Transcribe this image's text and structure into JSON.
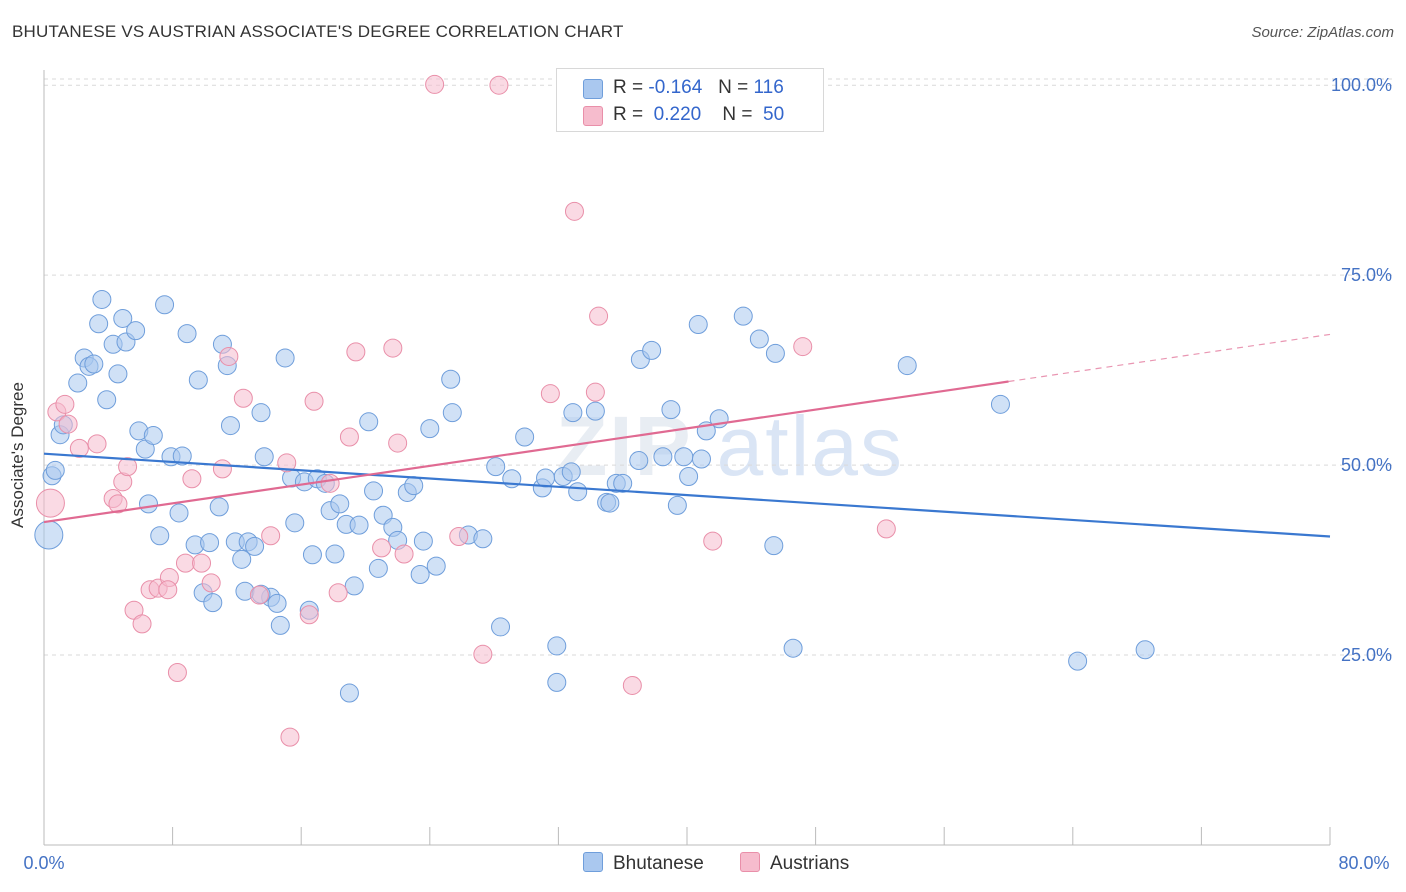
{
  "header": {
    "title": "BHUTANESE VS AUSTRIAN ASSOCIATE'S DEGREE CORRELATION CHART",
    "source": "Source: ZipAtlas.com"
  },
  "watermark": {
    "zip": "ZIP",
    "atlas": "atlas"
  },
  "legend": {
    "rows": [
      {
        "r_label": "R =",
        "r_value": "-0.164",
        "n_label": "N =",
        "n_value": "116"
      },
      {
        "r_label": "R =",
        "r_value": "0.220",
        "n_label": "N =",
        "n_value": "50"
      }
    ]
  },
  "bottom_legend": {
    "items": [
      "Bhutanese",
      "Austrians"
    ]
  },
  "colors": {
    "blue_fill": "#aac8ef",
    "blue_stroke": "#6f9edb",
    "blue_line": "#3a78d0",
    "pink_fill": "#f6bccd",
    "pink_stroke": "#e98fa9",
    "pink_line": "#e06a92",
    "grid": "#d9d9d9",
    "tick_text": "#4472c4"
  },
  "chart_data": {
    "type": "scatter",
    "title": "BHUTANESE VS AUSTRIAN ASSOCIATE'S DEGREE CORRELATION CHART",
    "xlabel": "",
    "ylabel": "Associate's Degree",
    "xlim": [
      0,
      80
    ],
    "ylim": [
      0,
      102
    ],
    "x_ticks": [
      0,
      8,
      16,
      24,
      32,
      40,
      48,
      56,
      64,
      72,
      80
    ],
    "x_tick_labels": {
      "0": "0.0%",
      "80": "80.0%"
    },
    "y_ticks": [
      25,
      50,
      75,
      100
    ],
    "y_tick_labels": [
      "25.0%",
      "50.0%",
      "75.0%",
      "100.0%"
    ],
    "grid": true,
    "legend_position": "top-center",
    "series": [
      {
        "name": "Bhutanese",
        "r": -0.164,
        "n": 116,
        "trend": {
          "x": [
            0,
            80
          ],
          "y": [
            51.5,
            40.6
          ]
        },
        "points": [
          [
            0.3,
            40.8
          ],
          [
            0.5,
            48.6
          ],
          [
            0.7,
            49.3
          ],
          [
            1.0,
            54.0
          ],
          [
            1.2,
            55.3
          ],
          [
            2.1,
            60.8
          ],
          [
            2.5,
            64.1
          ],
          [
            2.8,
            63.0
          ],
          [
            3.1,
            63.3
          ],
          [
            3.4,
            68.6
          ],
          [
            3.6,
            71.8
          ],
          [
            3.9,
            58.6
          ],
          [
            4.3,
            65.9
          ],
          [
            4.6,
            62.0
          ],
          [
            4.9,
            69.3
          ],
          [
            5.1,
            66.2
          ],
          [
            5.7,
            67.7
          ],
          [
            5.9,
            54.5
          ],
          [
            6.3,
            52.1
          ],
          [
            6.5,
            44.9
          ],
          [
            6.8,
            53.9
          ],
          [
            7.2,
            40.7
          ],
          [
            7.5,
            71.1
          ],
          [
            7.9,
            51.1
          ],
          [
            8.4,
            43.7
          ],
          [
            8.6,
            51.2
          ],
          [
            8.9,
            67.3
          ],
          [
            9.4,
            39.5
          ],
          [
            9.6,
            61.2
          ],
          [
            9.9,
            33.2
          ],
          [
            10.3,
            39.8
          ],
          [
            10.5,
            31.9
          ],
          [
            10.9,
            44.5
          ],
          [
            11.1,
            65.9
          ],
          [
            11.4,
            63.1
          ],
          [
            11.6,
            55.2
          ],
          [
            11.9,
            39.9
          ],
          [
            12.3,
            37.6
          ],
          [
            12.5,
            33.4
          ],
          [
            12.7,
            39.9
          ],
          [
            13.1,
            39.3
          ],
          [
            13.5,
            56.9
          ],
          [
            13.7,
            51.1
          ],
          [
            14.1,
            32.6
          ],
          [
            14.5,
            31.8
          ],
          [
            14.7,
            28.9
          ],
          [
            15.0,
            64.1
          ],
          [
            15.4,
            48.3
          ],
          [
            15.6,
            42.4
          ],
          [
            16.2,
            47.8
          ],
          [
            16.5,
            30.9
          ],
          [
            16.7,
            38.2
          ],
          [
            17.0,
            48.2
          ],
          [
            17.5,
            47.6
          ],
          [
            17.8,
            44.0
          ],
          [
            18.1,
            38.3
          ],
          [
            18.4,
            44.9
          ],
          [
            18.8,
            42.2
          ],
          [
            19.3,
            34.1
          ],
          [
            19.6,
            42.1
          ],
          [
            20.2,
            55.7
          ],
          [
            20.5,
            46.6
          ],
          [
            20.8,
            36.4
          ],
          [
            21.1,
            43.4
          ],
          [
            21.7,
            41.8
          ],
          [
            22.0,
            40.1
          ],
          [
            22.6,
            46.4
          ],
          [
            23.0,
            47.3
          ],
          [
            23.4,
            35.6
          ],
          [
            23.6,
            40.0
          ],
          [
            24.0,
            54.8
          ],
          [
            24.4,
            36.7
          ],
          [
            25.3,
            61.3
          ],
          [
            25.4,
            56.9
          ],
          [
            26.4,
            40.8
          ],
          [
            27.3,
            40.3
          ],
          [
            28.1,
            49.8
          ],
          [
            28.4,
            28.7
          ],
          [
            29.1,
            48.2
          ],
          [
            29.9,
            53.7
          ],
          [
            31.0,
            47.0
          ],
          [
            31.2,
            48.3
          ],
          [
            31.9,
            21.4
          ],
          [
            31.9,
            26.2
          ],
          [
            32.3,
            48.5
          ],
          [
            32.8,
            49.1
          ],
          [
            32.9,
            56.9
          ],
          [
            33.2,
            46.5
          ],
          [
            34.3,
            57.1
          ],
          [
            35.0,
            45.1
          ],
          [
            35.2,
            45.0
          ],
          [
            35.6,
            47.6
          ],
          [
            36.0,
            47.6
          ],
          [
            37.0,
            50.6
          ],
          [
            37.1,
            63.9
          ],
          [
            37.8,
            65.1
          ],
          [
            38.5,
            51.1
          ],
          [
            39.0,
            57.3
          ],
          [
            39.4,
            44.7
          ],
          [
            39.8,
            51.1
          ],
          [
            40.1,
            48.5
          ],
          [
            40.7,
            68.5
          ],
          [
            40.9,
            50.8
          ],
          [
            41.2,
            54.5
          ],
          [
            42.0,
            56.1
          ],
          [
            43.5,
            69.6
          ],
          [
            44.5,
            66.6
          ],
          [
            45.4,
            39.4
          ],
          [
            45.5,
            64.7
          ],
          [
            46.6,
            25.9
          ],
          [
            53.7,
            63.1
          ],
          [
            59.5,
            58.0
          ],
          [
            64.3,
            24.2
          ],
          [
            68.5,
            25.7
          ],
          [
            19.0,
            20.0
          ],
          [
            13.5,
            33.0
          ]
        ]
      },
      {
        "name": "Austrians",
        "r": 0.22,
        "n": 50,
        "trend": {
          "x": [
            0,
            60
          ],
          "y": [
            42.5,
            61.0
          ]
        },
        "trend_dashed": {
          "x": [
            60,
            80
          ],
          "y": [
            61.0,
            67.2
          ]
        },
        "points": [
          [
            0.4,
            45.0
          ],
          [
            0.8,
            57.0
          ],
          [
            1.3,
            58.0
          ],
          [
            1.5,
            55.4
          ],
          [
            2.2,
            52.2
          ],
          [
            3.3,
            52.8
          ],
          [
            4.3,
            45.6
          ],
          [
            4.6,
            44.9
          ],
          [
            4.9,
            47.8
          ],
          [
            5.2,
            49.8
          ],
          [
            5.6,
            30.9
          ],
          [
            6.1,
            29.1
          ],
          [
            6.6,
            33.6
          ],
          [
            7.1,
            33.8
          ],
          [
            7.8,
            35.2
          ],
          [
            8.3,
            22.7
          ],
          [
            8.8,
            37.1
          ],
          [
            9.2,
            48.2
          ],
          [
            9.8,
            37.1
          ],
          [
            10.4,
            34.5
          ],
          [
            11.1,
            49.5
          ],
          [
            11.5,
            64.3
          ],
          [
            12.4,
            58.8
          ],
          [
            13.4,
            32.9
          ],
          [
            14.1,
            40.7
          ],
          [
            15.1,
            50.3
          ],
          [
            15.3,
            14.2
          ],
          [
            16.5,
            30.3
          ],
          [
            16.8,
            58.4
          ],
          [
            17.8,
            47.6
          ],
          [
            18.3,
            33.2
          ],
          [
            19.0,
            53.7
          ],
          [
            19.4,
            64.9
          ],
          [
            21.0,
            39.1
          ],
          [
            21.7,
            65.4
          ],
          [
            22.0,
            52.9
          ],
          [
            22.4,
            38.3
          ],
          [
            25.8,
            40.6
          ],
          [
            27.3,
            25.1
          ],
          [
            28.3,
            100.0
          ],
          [
            24.3,
            100.1
          ],
          [
            31.5,
            59.4
          ],
          [
            33.0,
            83.4
          ],
          [
            34.3,
            59.6
          ],
          [
            34.5,
            69.6
          ],
          [
            36.6,
            21.0
          ],
          [
            41.6,
            40.0
          ],
          [
            47.2,
            65.6
          ],
          [
            52.4,
            41.6
          ],
          [
            7.7,
            33.6
          ]
        ]
      }
    ]
  }
}
